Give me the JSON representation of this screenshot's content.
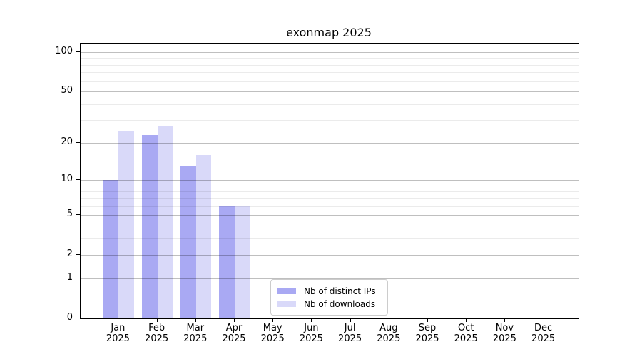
{
  "title": "exonmap 2025",
  "chart_data": {
    "type": "bar",
    "title": "exonmap 2025",
    "categories": [
      "Jan",
      "Feb",
      "Mar",
      "Apr",
      "May",
      "Jun",
      "Jul",
      "Aug",
      "Sep",
      "Oct",
      "Nov",
      "Dec"
    ],
    "x_tick_year": "2025",
    "series": [
      {
        "name": "Nb of distinct IPs",
        "color": "#a9a9f3",
        "values": [
          10,
          23,
          13,
          6,
          0,
          0,
          0,
          0,
          0,
          0,
          0,
          0
        ]
      },
      {
        "name": "Nb of downloads",
        "color": "#d9d9f9",
        "values": [
          25,
          27,
          16,
          6,
          0,
          0,
          0,
          0,
          0,
          0,
          0,
          0
        ]
      }
    ],
    "yscale": "log1p",
    "ylim": [
      0,
      116
    ],
    "y_ticks": [
      0,
      1,
      2,
      5,
      10,
      20,
      50,
      100
    ],
    "y_minor_gridlines": [
      3,
      4,
      6,
      7,
      8,
      9,
      30,
      40,
      60,
      70,
      80,
      90
    ],
    "grid": true,
    "legend_position": "lower center-right"
  }
}
